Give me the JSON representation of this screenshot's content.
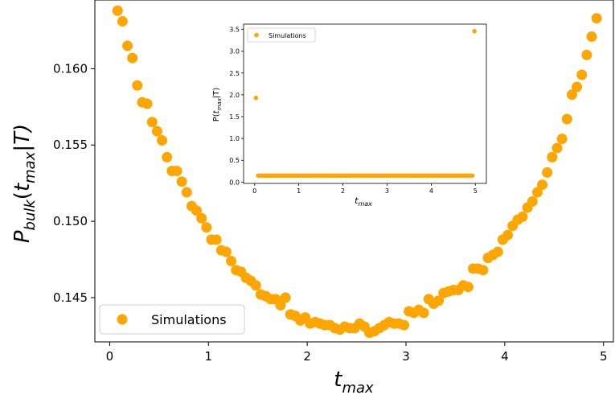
{
  "chart_data": [
    {
      "type": "scatter",
      "xlabel_base": "t",
      "xlabel_sub": "max",
      "ylabel_parts": {
        "p": "P",
        "p_sub": "bulk",
        "open": "(",
        "t": "t",
        "t_sub": "max",
        "bar": "|T)"
      },
      "xlim": [
        -0.15,
        5.1
      ],
      "ylim": [
        0.1421,
        0.1645
      ],
      "xticks": [
        0,
        1,
        2,
        3,
        4,
        5
      ],
      "xtick_labels": [
        "0",
        "1",
        "2",
        "3",
        "4",
        "5"
      ],
      "yticks": [
        0.145,
        0.15,
        0.155,
        0.16
      ],
      "ytick_labels": [
        "0.145",
        "0.150",
        "0.155",
        "0.160"
      ],
      "legend": "lower-left",
      "grid": false,
      "marker_color": "#FFA500",
      "series": [
        {
          "name": "Simulations",
          "x": [
            0.08,
            0.13,
            0.18,
            0.23,
            0.28,
            0.33,
            0.38,
            0.43,
            0.48,
            0.53,
            0.58,
            0.63,
            0.68,
            0.73,
            0.78,
            0.83,
            0.88,
            0.93,
            0.98,
            1.03,
            1.08,
            1.13,
            1.18,
            1.23,
            1.28,
            1.33,
            1.38,
            1.43,
            1.48,
            1.53,
            1.58,
            1.63,
            1.68,
            1.73,
            1.78,
            1.83,
            1.88,
            1.93,
            1.98,
            2.03,
            2.08,
            2.13,
            2.18,
            2.23,
            2.28,
            2.33,
            2.38,
            2.43,
            2.48,
            2.53,
            2.58,
            2.63,
            2.68,
            2.73,
            2.78,
            2.83,
            2.88,
            2.93,
            2.98,
            3.03,
            3.08,
            3.13,
            3.18,
            3.23,
            3.28,
            3.33,
            3.38,
            3.43,
            3.48,
            3.53,
            3.58,
            3.63,
            3.68,
            3.73,
            3.78,
            3.83,
            3.88,
            3.93,
            3.98,
            4.03,
            4.08,
            4.13,
            4.18,
            4.23,
            4.28,
            4.33,
            4.38,
            4.43,
            4.48,
            4.53,
            4.58,
            4.63,
            4.68,
            4.73,
            4.78,
            4.83,
            4.88,
            4.93
          ],
          "y": [
            0.1638,
            0.1631,
            0.1615,
            0.1607,
            0.1589,
            0.1578,
            0.1577,
            0.1565,
            0.1559,
            0.1553,
            0.1542,
            0.1533,
            0.1533,
            0.1526,
            0.1519,
            0.151,
            0.1507,
            0.1502,
            0.1496,
            0.1488,
            0.1488,
            0.1481,
            0.148,
            0.1474,
            0.1468,
            0.1467,
            0.1463,
            0.1461,
            0.1458,
            0.1452,
            0.1451,
            0.1449,
            0.1449,
            0.1445,
            0.145,
            0.1439,
            0.1438,
            0.1435,
            0.1437,
            0.1433,
            0.1434,
            0.1433,
            0.1432,
            0.1432,
            0.143,
            0.1429,
            0.1431,
            0.143,
            0.143,
            0.1433,
            0.1431,
            0.1427,
            0.1428,
            0.143,
            0.1432,
            0.1434,
            0.1433,
            0.1433,
            0.1432,
            0.1441,
            0.144,
            0.1442,
            0.144,
            0.1449,
            0.1446,
            0.1448,
            0.1453,
            0.1454,
            0.1455,
            0.1455,
            0.1458,
            0.1457,
            0.1469,
            0.1469,
            0.1468,
            0.1476,
            0.1478,
            0.148,
            0.1488,
            0.1491,
            0.1497,
            0.1501,
            0.1503,
            0.1509,
            0.1513,
            0.1519,
            0.1524,
            0.1532,
            0.1542,
            0.1548,
            0.1554,
            0.1567,
            0.1583,
            0.1588,
            0.1596,
            0.1609,
            0.1621,
            0.1633
          ]
        }
      ]
    },
    {
      "type": "scatter",
      "inset": true,
      "xlabel_base": "t",
      "xlabel_sub": "max",
      "ylabel_parts": {
        "p": "P(",
        "t": "t",
        "t_sub": "max",
        "bar": "|T)"
      },
      "xlim": [
        -0.25,
        5.25
      ],
      "ylim": [
        -0.03,
        3.62
      ],
      "xticks": [
        0,
        1,
        2,
        3,
        4,
        5
      ],
      "xtick_labels": [
        "0",
        "1",
        "2",
        "3",
        "4",
        "5"
      ],
      "yticks": [
        0,
        0.5,
        1,
        1.5,
        2,
        2.5,
        3,
        3.5
      ],
      "ytick_labels": [
        "0.0",
        "0.5",
        "1.0",
        "1.5",
        "2.0",
        "2.5",
        "3.0",
        "3.5"
      ],
      "legend": "upper-left",
      "grid": false,
      "marker_color": "#FFA500",
      "series": [
        {
          "name": "Simulations",
          "x_start": 0.08,
          "x_step": 0.05,
          "count": 98,
          "baseline": 0.15,
          "outliers": [
            {
              "x": 0.03,
              "y": 1.93
            },
            {
              "x": 4.98,
              "y": 3.46
            }
          ]
        }
      ]
    }
  ]
}
